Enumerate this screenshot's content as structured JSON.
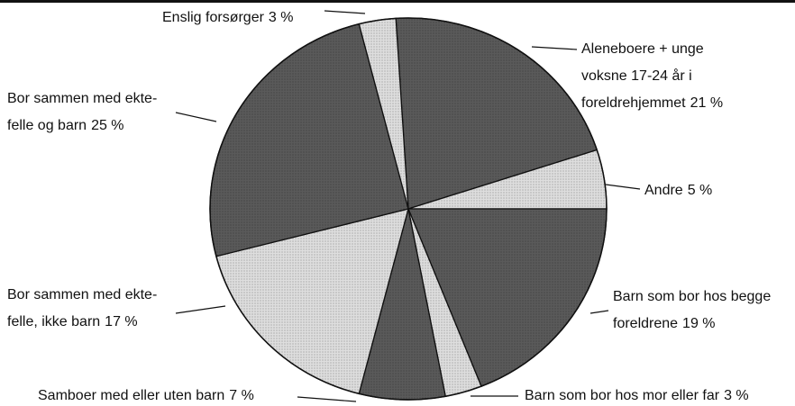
{
  "chart_data": {
    "type": "pie",
    "categories": [
      [
        "Aleneboere + unge",
        "voksne 17-24 år i",
        "foreldrehjemmet "
      ],
      [
        "Andre"
      ],
      [
        "Barn som bor hos begge",
        "foreldrene"
      ],
      [
        "Barn som bor hos mor eller far"
      ],
      [
        "Samboer med eller uten barn"
      ],
      [
        "Bor sammen med ekte-",
        "felle, ikke barn"
      ],
      [
        "Bor sammen med ekte-",
        "felle og barn"
      ],
      [
        "Enslig forsørger"
      ]
    ],
    "values": [
      21,
      5,
      19,
      3,
      7,
      17,
      25,
      3
    ],
    "value_labels": [
      "21 %",
      "5 %",
      "19 %",
      "3 %",
      "7 %",
      "17 %",
      "25 %",
      "3 %"
    ],
    "colors": [
      "#5a5a5a",
      "#dedede",
      "#5a5a5a",
      "#dedede",
      "#5a5a5a",
      "#dedede",
      "#5a5a5a",
      "#dedede"
    ]
  }
}
